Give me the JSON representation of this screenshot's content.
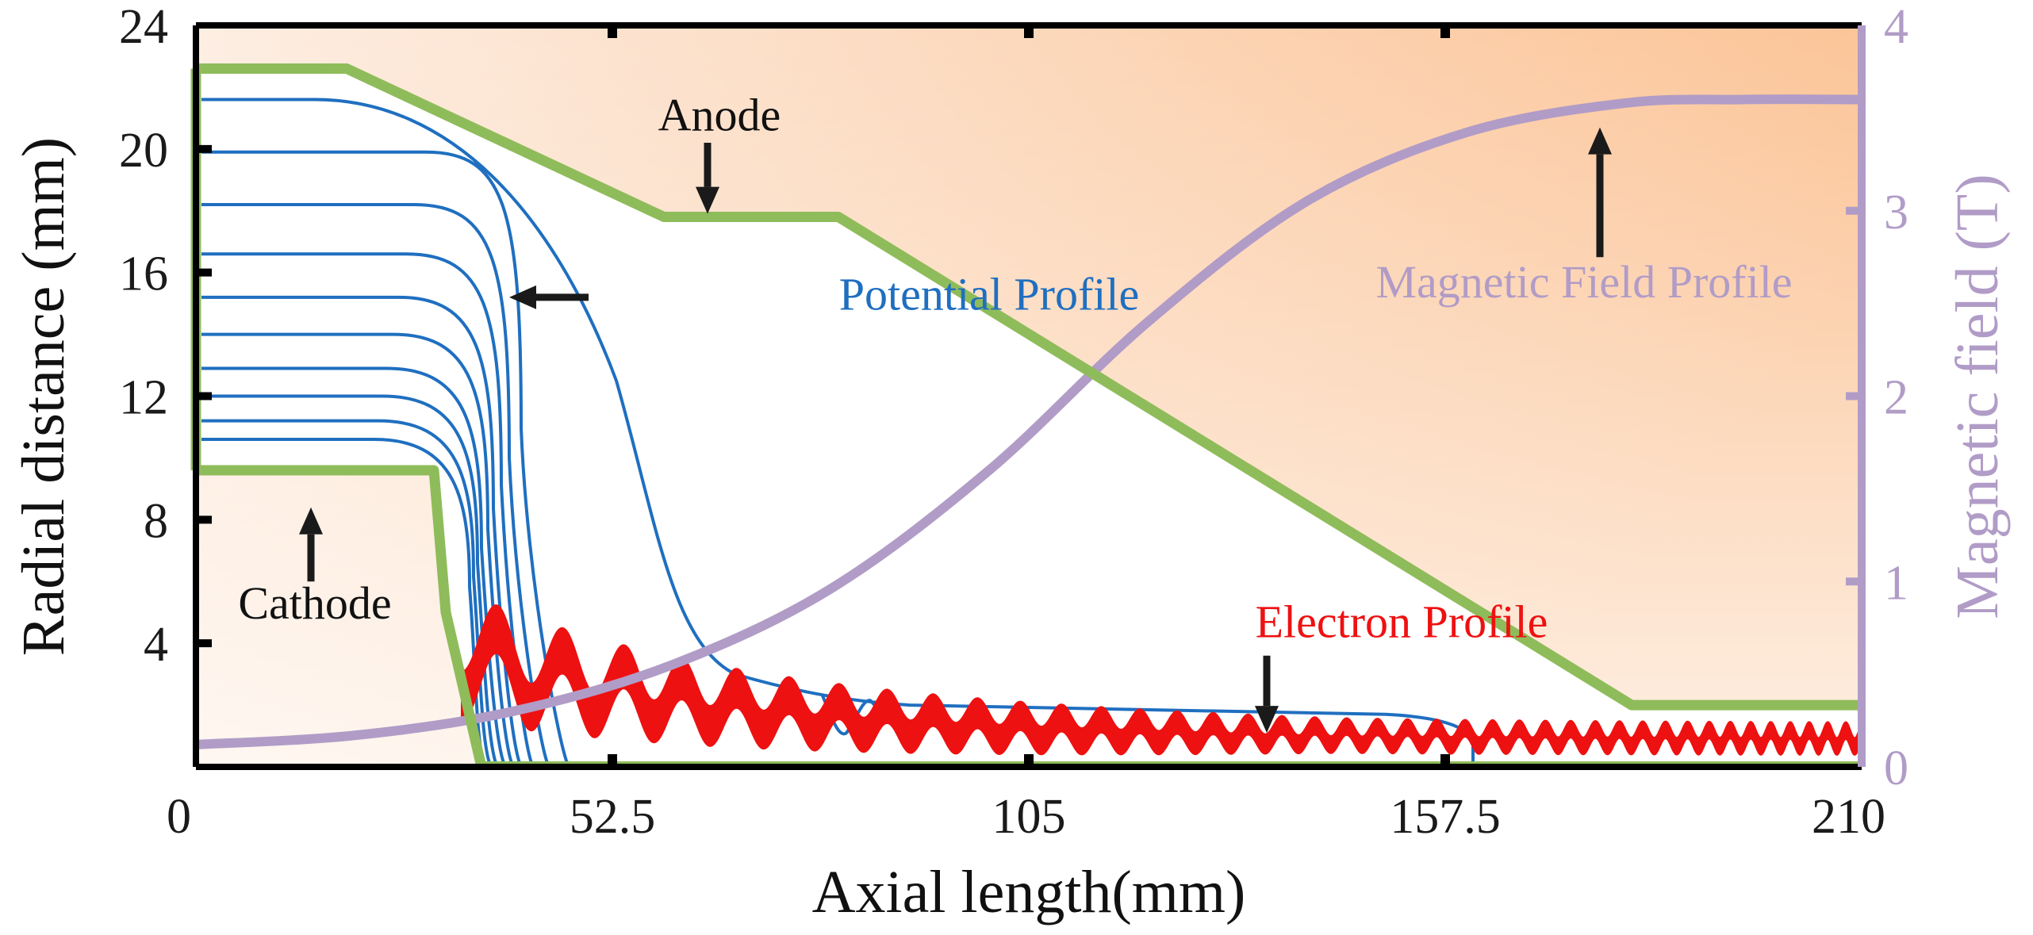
{
  "chart_data": {
    "type": "line",
    "title": "",
    "xlabel": "Axial length(mm)",
    "ylabel": "Radial distance (mm)",
    "y2label": "Magnetic field (T)",
    "xlim": [
      0,
      210
    ],
    "ylim": [
      0,
      24
    ],
    "y2lim": [
      0,
      4
    ],
    "xticks": [
      "0",
      "52.5",
      "105",
      "157.5",
      "210"
    ],
    "yticks": [
      "4",
      "8",
      "12",
      "16",
      "20",
      "24"
    ],
    "y2ticks": [
      "0",
      "1",
      "2",
      "3",
      "4"
    ],
    "colors": {
      "anode": "#8fbc5a",
      "cathode": "#8fbc5a",
      "potential": "#1f6fc0",
      "electron": "#ee1111",
      "magnetic": "#b19cc7",
      "fill": "#fbc79c",
      "arrow": "#1a1a1a"
    },
    "series": [
      {
        "name": "Anode",
        "axis": "left",
        "x": [
          0,
          19,
          59,
          81,
          181,
          210
        ],
        "y": [
          22.6,
          22.6,
          17.8,
          17.8,
          2.0,
          2.0
        ]
      },
      {
        "name": "Cathode",
        "axis": "left",
        "x": [
          0,
          30,
          31.5,
          36
        ],
        "y": [
          9.6,
          9.6,
          5.0,
          0
        ]
      },
      {
        "name": "Magnetic Field Profile",
        "axis": "right",
        "x": [
          0,
          20,
          40,
          60,
          80,
          100,
          120,
          140,
          160,
          180,
          195,
          210
        ],
        "y": [
          0.12,
          0.17,
          0.3,
          0.55,
          0.96,
          1.6,
          2.4,
          3.05,
          3.42,
          3.58,
          3.6,
          3.6
        ]
      },
      {
        "name": "Electron Profile",
        "axis": "left",
        "x0": 33.5,
        "x1": 210,
        "center_start": 3.6,
        "center_end": 0.9,
        "amp_start": 1.3,
        "amp_end": 0.25,
        "decay": 35,
        "period_start": 9.5,
        "period_end": 2.2,
        "thickness_start": 1.6,
        "thickness_end": 0.55
      }
    ],
    "potential_lines": [
      {
        "plateau": 21.6,
        "drop_x": 55,
        "end_x": 52
      },
      {
        "plateau": 19.9,
        "drop_x": 41,
        "end_x": 47
      },
      {
        "plateau": 18.2,
        "drop_x": 39.5,
        "end_x": 44.5
      },
      {
        "plateau": 16.6,
        "drop_x": 38.5,
        "end_x": 42.5
      },
      {
        "plateau": 15.2,
        "drop_x": 37.5,
        "end_x": 41
      },
      {
        "plateau": 14.0,
        "drop_x": 36.8,
        "end_x": 40
      },
      {
        "plateau": 12.9,
        "drop_x": 36,
        "end_x": 39
      },
      {
        "plateau": 12.0,
        "drop_x": 35.5,
        "end_x": 38
      },
      {
        "plateau": 11.2,
        "drop_x": 35,
        "end_x": 37.2
      },
      {
        "plateau": 10.6,
        "drop_x": 34.5,
        "end_x": 36.5
      }
    ],
    "annotations": [
      {
        "text": "Anode",
        "tx": 66,
        "ty": 20.6,
        "ax1": 64.5,
        "ay1": 20.2,
        "ax2": 64.5,
        "ay2": 17.9,
        "color": "#111111"
      },
      {
        "text": "Potential Profile",
        "tx": 100,
        "ty": 14.8,
        "ax1": 49.5,
        "ay1": 15.2,
        "ax2": 39.5,
        "ay2": 15.2,
        "color": "#1f6fc0"
      },
      {
        "text": "Cathode",
        "tx": 15,
        "ty": 4.8,
        "ax1": 14.5,
        "ay1": 6.0,
        "ax2": 14.5,
        "ay2": 8.4,
        "color": "#111111"
      },
      {
        "text": "Electron Profile",
        "tx": 152,
        "ty": 4.2,
        "ax1": 135,
        "ay1": 3.6,
        "ax2": 135,
        "ay2": 1.1,
        "color": "#ee1111"
      },
      {
        "text": "Magnetic Field Profile",
        "tx": 175,
        "ty": 15.2,
        "ax1": 177,
        "ay1": 16.5,
        "ax2": 177,
        "ay2": 20.7,
        "color": "#b19cc7"
      }
    ]
  }
}
